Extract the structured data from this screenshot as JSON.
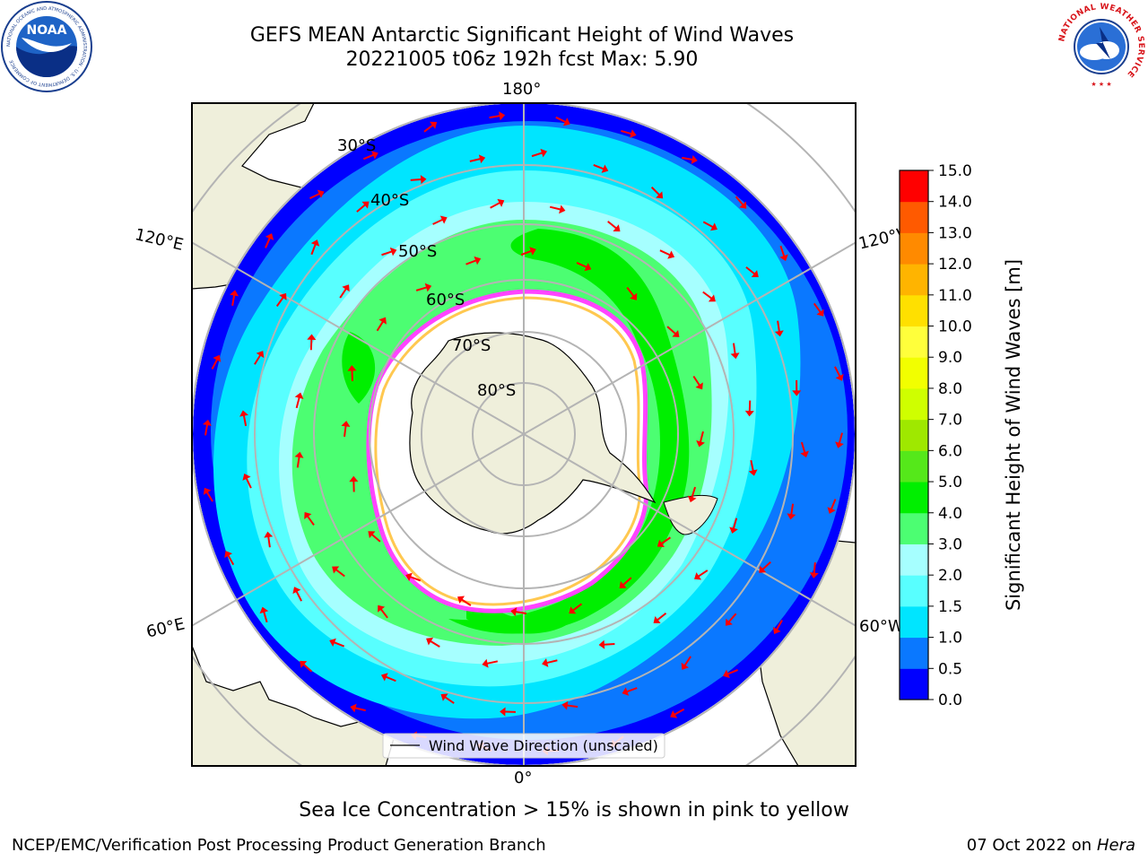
{
  "title": {
    "line1": "GEFS MEAN Antarctic Significant Height of Wind Waves",
    "line2": "20221005 t06z 192h fcst   Max: 5.90"
  },
  "map": {
    "lon_labels": [
      "180°",
      "120°W",
      "60°W",
      "0°",
      "60°E",
      "120°E"
    ],
    "lat_labels": [
      "30°S",
      "40°S",
      "50°S",
      "60°S",
      "70°S",
      "80°S"
    ],
    "legend_entry": "Wind Wave Direction (unscaled)",
    "ocean_color": "#ffffff",
    "land_color": "#efefdb",
    "arrow_color": "#ff0000"
  },
  "colorbar": {
    "label": "Significant Height of Wind Waves [m]",
    "ticks": [
      "0.0",
      "0.5",
      "1.0",
      "1.5",
      "2.0",
      "3.0",
      "4.0",
      "5.0",
      "6.0",
      "7.0",
      "8.0",
      "9.0",
      "10.0",
      "11.0",
      "12.0",
      "13.0",
      "14.0",
      "15.0"
    ],
    "colors": [
      "#0000ff",
      "#0a78ff",
      "#00e5ff",
      "#58ffff",
      "#a6ffff",
      "#4cfe72",
      "#00ef00",
      "#55e81a",
      "#9fe800",
      "#cfff00",
      "#f2ff00",
      "#ffff3b",
      "#ffe000",
      "#ffb400",
      "#ff8a00",
      "#ff5a00",
      "#ff0000"
    ]
  },
  "chart_data": {
    "type": "heatmap",
    "title": "GEFS MEAN Antarctic Significant Height of Wind Waves",
    "subtitle": "20221005 t06z 192h fcst   Max: 5.90",
    "units": "m",
    "max_value": 5.9,
    "color_scale_range": [
      0,
      15
    ],
    "colorbar_ticks": [
      0.0,
      0.5,
      1.0,
      1.5,
      2.0,
      3.0,
      4.0,
      5.0,
      6.0,
      7.0,
      8.0,
      9.0,
      10.0,
      11.0,
      12.0,
      13.0,
      14.0,
      15.0
    ],
    "legend": [
      "Wind Wave Direction (unscaled)"
    ]
  },
  "bottom_note": "Sea Ice Concentration > 15% is shown in pink to yellow",
  "footer": {
    "left": "NCEP/EMC/Verification Post Processing Product Generation Branch",
    "date": "07 Oct 2022 on ",
    "host": "Hera"
  },
  "logos": {
    "noaa": "NOAA",
    "noaa_ring": "NATIONAL OCEANIC AND ATMOSPHERIC ADMINISTRATION · U.S. DEPARTMENT OF COMMERCE",
    "nws_ring": "NATIONAL WEATHER SERVICE"
  }
}
